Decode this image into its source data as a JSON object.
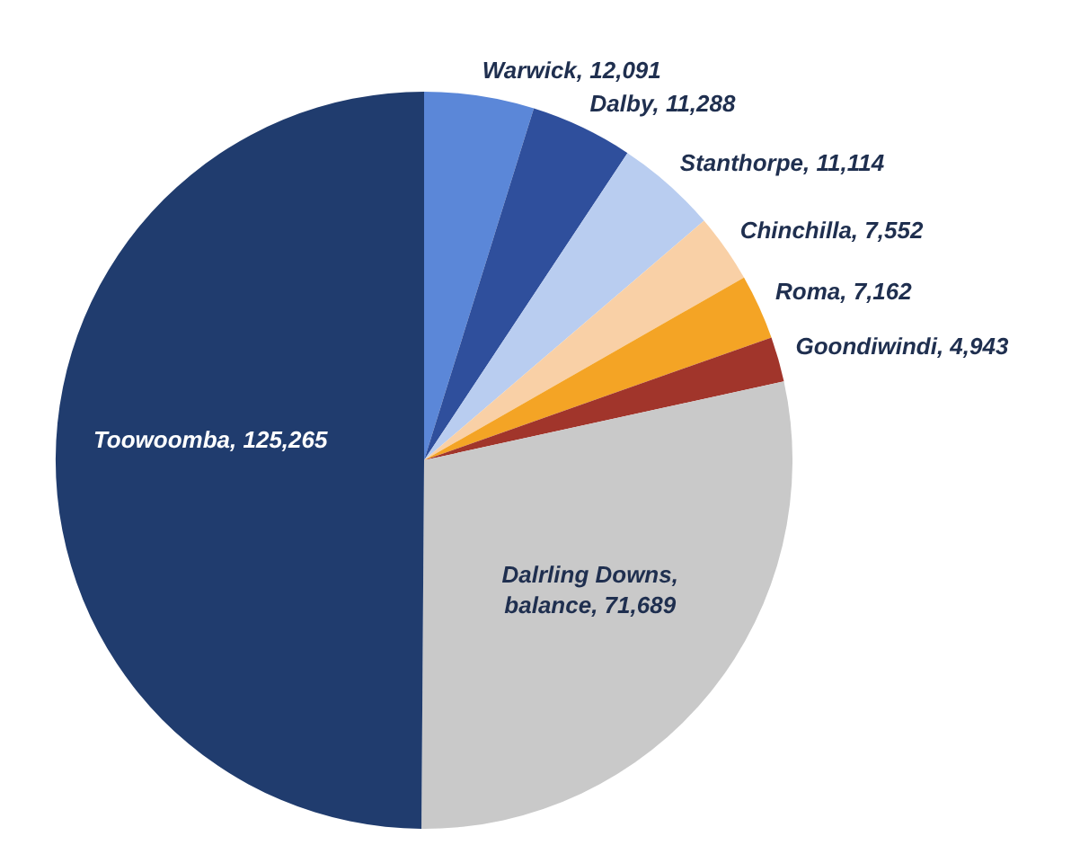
{
  "chart_data": {
    "type": "pie",
    "categories": [
      "Warwick",
      "Dalby",
      "Stanthorpe",
      "Chinchilla",
      "Roma",
      "Goondiwindi",
      "Dalrling Downs, balance",
      "Toowoomba"
    ],
    "value_labels": [
      "12,091",
      "11,288",
      "11,114",
      "7,552",
      "7,162",
      "4,943",
      "71,689",
      "125,265"
    ],
    "values": [
      12091,
      11288,
      11114,
      7552,
      7162,
      4943,
      71689,
      125265
    ],
    "colors": [
      "#5b87d8",
      "#2f4f9c",
      "#b9cdf0",
      "#f9d0a6",
      "#f4a425",
      "#a1352b",
      "#c9c9c9",
      "#203c6e"
    ]
  }
}
